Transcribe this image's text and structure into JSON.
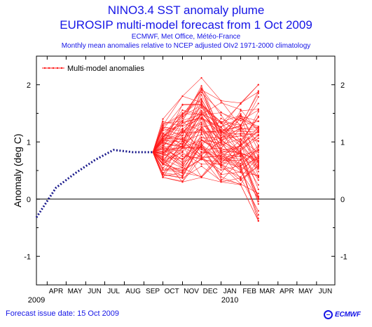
{
  "header": {
    "title": "NINO3.4 SST anomaly plume",
    "subtitle": "EUROSIP multi-model forecast from 1 Oct 2009",
    "centres": "ECMWF, Met Office, Météo-France",
    "description": "Monthly mean anomalies relative to NCEP adjusted OIv2 1971-2000 climatology"
  },
  "footer": {
    "issue_date": "Forecast issue date: 15 Oct 2009",
    "logo_text": "ECMWF",
    "logo_icon": "ecmwf-logo-icon"
  },
  "colors": {
    "text": "#1515e6",
    "analysis": "#1a1a8c",
    "forecast": "#ff1a1a",
    "zero_line": "#000000"
  },
  "chart_data": {
    "type": "line",
    "ylabel": "Anomaly (deg C)",
    "ylim": [
      -1.5,
      2.5
    ],
    "y_ticks": [
      "2",
      "1",
      "0",
      "-1"
    ],
    "x_ticks": [
      "APR",
      "MAY",
      "JUN",
      "JUL",
      "AUG",
      "SEP",
      "OCT",
      "NOV",
      "DEC",
      "JAN",
      "FEB",
      "MAR",
      "APR",
      "MAY",
      "JUN"
    ],
    "year_labels": [
      {
        "label": "2009",
        "month_index": 0
      },
      {
        "label": "2010",
        "month_index": 9
      }
    ],
    "x_axis_start": "2009-03-15",
    "x_axis_end": "2010-06-30",
    "grid": false,
    "zero_line": true,
    "legend": {
      "position": "top-left",
      "label": "Multi-model anomalies"
    },
    "analysis": {
      "x": [
        "2009-03-15",
        "2009-04-15",
        "2009-05-15",
        "2009-06-15",
        "2009-07-15",
        "2009-08-15",
        "2009-09-15"
      ],
      "y": [
        -0.32,
        0.2,
        0.45,
        0.68,
        0.86,
        0.82,
        0.82
      ],
      "style": "dotted"
    },
    "forecast": {
      "start": {
        "x": "2009-09-15",
        "y": 0.82
      },
      "x": [
        "2009-10-01",
        "2009-11-01",
        "2009-12-01",
        "2010-01-01",
        "2010-02-01",
        "2010-03-01"
      ],
      "spread": {
        "oct": [
          0.38,
          1.4
        ],
        "nov": [
          0.3,
          1.8
        ],
        "dec": [
          0.38,
          2.12
        ],
        "jan": [
          0.3,
          1.72
        ],
        "feb": [
          0.25,
          1.68
        ],
        "mar": [
          -0.38,
          2.0
        ]
      },
      "member_count": 80
    }
  }
}
